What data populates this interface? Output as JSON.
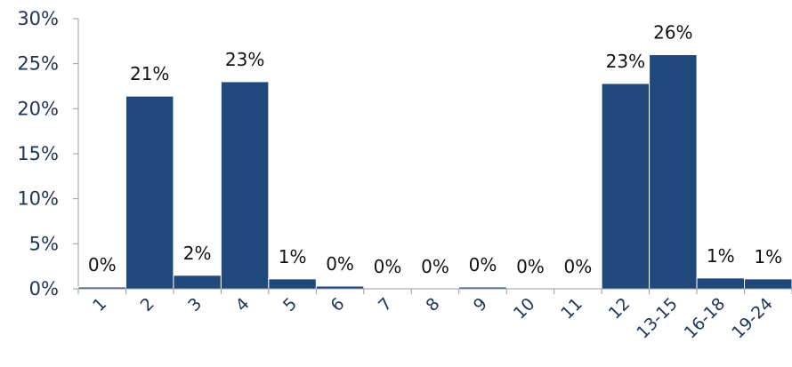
{
  "chart_data": {
    "type": "bar",
    "categories": [
      "1",
      "2",
      "3",
      "4",
      "5",
      "6",
      "7",
      "8",
      "9",
      "10",
      "11",
      "12",
      "13-15",
      "16-18",
      "19-24"
    ],
    "values": [
      0.2,
      21.4,
      1.5,
      23.0,
      1.1,
      0.3,
      0.0,
      0.0,
      0.2,
      0.0,
      0.0,
      22.8,
      26.0,
      1.2,
      1.1
    ],
    "data_labels": [
      "0%",
      "21%",
      "2%",
      "23%",
      "1%",
      "0%",
      "0%",
      "0%",
      "0%",
      "0%",
      "0%",
      "23%",
      "26%",
      "1%",
      "1%"
    ],
    "title": "",
    "xlabel": "",
    "ylabel": "",
    "ylim": [
      0,
      30
    ],
    "yticks": [
      0,
      5,
      10,
      15,
      20,
      25,
      30
    ],
    "ytick_labels": [
      "0%",
      "5%",
      "10%",
      "15%",
      "20%",
      "25%",
      "30%"
    ],
    "grid": false,
    "legend": "none",
    "colors": {
      "bar": "#1f497d",
      "bar_edge": "#ffffff",
      "axis": "#9a9a9a",
      "tick_text": "#1f3557",
      "label_text": "#111111"
    }
  }
}
